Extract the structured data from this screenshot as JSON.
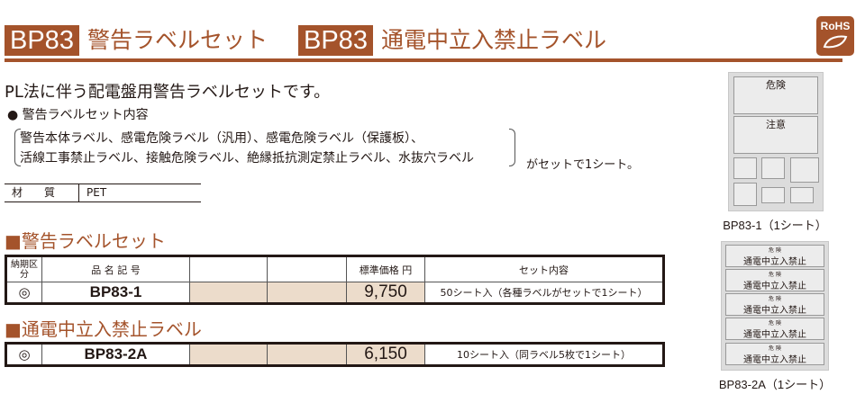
{
  "header": {
    "code1": "BP83",
    "title1": "警告ラベルセット",
    "code2": "BP83",
    "title2": "通電中立入禁止ラベル",
    "rohs": "RoHS"
  },
  "intro": {
    "lead": "PL法に伴う配電盤用警告ラベルセットです。",
    "contents_heading": "● 警告ラベルセット内容",
    "line1": "警告本体ラベル、感電危険ラベル（汎用）、感電危険ラベル（保護板）、",
    "line2": "活線工事禁止ラベル、接触危険ラベル、絶縁抵抗測定禁止ラベル、水抜穴ラベル",
    "suffix": "がセットで1シート。"
  },
  "material": {
    "label": "材　　質",
    "value": "PET"
  },
  "section1": {
    "title": "■警告ラベルセット",
    "headers": [
      "納期区分",
      "品 名 記 号",
      "",
      "",
      "標準価格 円",
      "セット内容"
    ],
    "rows": [
      {
        "delivery": "◎",
        "code": "BP83-1",
        "price": "9,750",
        "contents": "50シート入（各種ラベルがセットで1シート）"
      }
    ]
  },
  "section2": {
    "title": "■通電中立入禁止ラベル",
    "rows": [
      {
        "delivery": "◎",
        "code": "BP83-2A",
        "price": "6,150",
        "contents": "10シート入（同ラベル5枚で1シート）"
      }
    ]
  },
  "images": [
    {
      "caption": "BP83-1（1シート）",
      "heading1": "危険",
      "heading2": "注意"
    },
    {
      "caption": "BP83-2A（1シート）",
      "label_top": "危 険",
      "label_text": "通電中立入禁止"
    }
  ],
  "colors": {
    "brand": "#a4532b",
    "price_cell": "#ecdccb"
  }
}
